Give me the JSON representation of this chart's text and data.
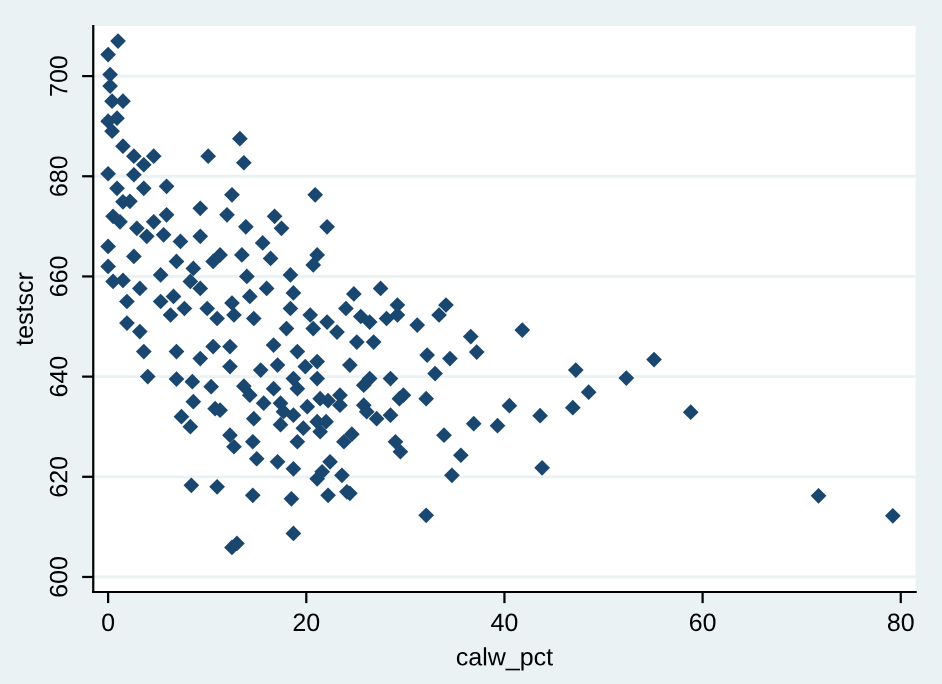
{
  "chart_data": {
    "type": "scatter",
    "xlabel": "calw_pct",
    "ylabel": "testscr",
    "xlim": [
      -1.5,
      81.5
    ],
    "ylim": [
      597,
      710
    ],
    "xticks": [
      0,
      20,
      40,
      60,
      80
    ],
    "yticks": [
      600,
      620,
      640,
      660,
      680,
      700
    ],
    "grid": "y",
    "marker": "diamond",
    "series": [
      {
        "color": "#1a476f",
        "x": [
          0,
          1.0,
          0.2,
          0.2,
          0.4,
          1.5,
          0,
          0.4,
          0.9,
          0,
          1.5,
          2.6,
          4.6,
          0.9,
          3.6,
          0.5,
          2.2,
          5.9,
          5.9,
          3.9,
          2.6,
          0,
          0,
          0.5,
          1.5,
          1.9,
          1.9,
          3.2,
          3.6,
          4.0,
          5.3,
          6.6,
          6.9,
          9.3,
          9.3,
          10.1,
          8.6,
          10.6,
          6.9,
          6.9,
          8.5,
          7.4,
          8.3,
          8.6,
          8.4,
          11.0,
          9.3,
          10.6,
          10.4,
          10.8,
          11.3,
          12.3,
          12.3,
          12.7,
          12.5,
          12.0,
          12.5,
          13.3,
          13.7,
          13.9,
          13.5,
          14.0,
          12.3,
          12.7,
          12.5,
          13.0,
          14.3,
          14.7,
          13.7,
          14.3,
          14.7,
          14.6,
          14.6,
          15.0,
          15.7,
          15.4,
          15.6,
          16.4,
          16.0,
          16.8,
          17.5,
          16.7,
          17.1,
          16.7,
          17.4,
          17.4,
          17.1,
          17.7,
          18.0,
          18.4,
          18.7,
          18.4,
          19.1,
          18.7,
          19.1,
          18.7,
          19.7,
          19.1,
          18.7,
          18.5,
          18.7,
          19.9,
          20.1,
          20.4,
          20.7,
          20.9,
          21.1,
          20.7,
          21.1,
          21.1,
          21.4,
          21.1,
          21.4,
          21.1,
          21.6,
          22.1,
          22.1,
          22.2,
          22.0,
          22.2,
          22.4,
          23.1,
          23.4,
          23.4,
          23.6,
          23.8,
          24.0,
          24.1,
          24.4,
          24.6,
          24.4,
          24.8,
          25.1,
          25.5,
          25.8,
          25.8,
          26.1,
          26.4,
          26.8,
          26.4,
          27.1,
          27.5,
          28.1,
          28.5,
          28.5,
          29.0,
          29.2,
          29.2,
          29.4,
          29.5,
          29.8,
          31.2,
          32.1,
          32.2,
          32.1,
          33.0,
          33.4,
          34.1,
          33.9,
          34.5,
          34.7,
          35.6,
          36.6,
          36.9,
          37.2,
          39.3,
          40.5,
          41.8,
          43.6,
          43.8,
          46.9,
          47.2,
          48.5,
          52.3,
          55.1,
          58.8,
          71.7,
          79.2,
          1.2,
          2.9,
          4.6,
          5.6,
          7.3,
          8.3,
          9.3,
          5.3,
          3.2,
          7.7,
          6.3,
          10.0,
          11.0,
          11.3,
          2.6,
          3.6,
          1.5
        ],
        "values": [
          704.3,
          707,
          700.3,
          698,
          695,
          695,
          691,
          689,
          691.6,
          680.5,
          686,
          684,
          684,
          677.6,
          677.6,
          672,
          675,
          678,
          672.3,
          668,
          664,
          666,
          662,
          659,
          659.2,
          655,
          650.7,
          649,
          645,
          640,
          655,
          656,
          663,
          673.6,
          668,
          684,
          661.6,
          663,
          645,
          639.5,
          639,
          632,
          630,
          635,
          618.3,
          618,
          643.6,
          646,
          638,
          633.6,
          633.3,
          642,
          646,
          652.3,
          654.7,
          672.3,
          676.3,
          687.5,
          682.7,
          669.9,
          664.3,
          660,
          628.3,
          626,
          605.9,
          606.7,
          656,
          651.6,
          638.1,
          636.3,
          631.6,
          627,
          616.3,
          623.6,
          634.7,
          641.3,
          666.7,
          663.6,
          657.6,
          672,
          669.6,
          646.3,
          642.3,
          637.6,
          634.7,
          630.4,
          623,
          633,
          649.6,
          660.3,
          656.7,
          653.6,
          645,
          639.6,
          637.6,
          632.3,
          629.7,
          627,
          621.6,
          615.6,
          608.7,
          642,
          634,
          652.3,
          662.3,
          676.3,
          664.3,
          649.6,
          643,
          639.6,
          635.6,
          631,
          629,
          619.6,
          621,
          669.9,
          650.9,
          635.2,
          631,
          616.3,
          623,
          648.9,
          636.3,
          634.3,
          620.3,
          627,
          653.6,
          617,
          616.7,
          628.5,
          642.3,
          656.5,
          646.9,
          652,
          638.3,
          634.3,
          633,
          650.9,
          646.9,
          639.6,
          631.6,
          657.6,
          651.6,
          639.6,
          632.3,
          627,
          654.3,
          652.3,
          635.6,
          625,
          636.3,
          650.3,
          635.6,
          644.3,
          612.3,
          640.6,
          652.3,
          654.3,
          628.3,
          643.6,
          620.3,
          624.3,
          648,
          630.6,
          644.9,
          630.2,
          634.2,
          649.3,
          632.2,
          621.8,
          633.8,
          641.3,
          636.9,
          639.7,
          643.4,
          632.9,
          616.2,
          612.2,
          670.9,
          669.6,
          670.9,
          668.3,
          667,
          659,
          657.6,
          660.3,
          657.6,
          653.6,
          652.3,
          653.6,
          651.6,
          664.3,
          680.3,
          682.3,
          674.9
        ]
      }
    ]
  }
}
